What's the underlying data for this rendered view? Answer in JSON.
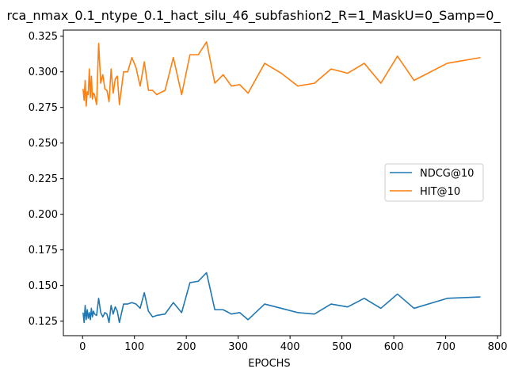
{
  "chart_data": {
    "type": "line",
    "title": "rca_nmax_0.1_ntype_0.1_hact_silu_46_subfashion2_R=1_MaskU=0_Samp=0_",
    "xlabel": "EPOCHS",
    "ylabel": "",
    "xlim": [
      -37,
      806
    ],
    "ylim": [
      0.1148,
      0.3293
    ],
    "x_ticks": [
      0,
      100,
      200,
      300,
      400,
      500,
      600,
      700,
      800
    ],
    "y_ticks": [
      0.125,
      0.15,
      0.175,
      0.2,
      0.225,
      0.25,
      0.275,
      0.3,
      0.325
    ],
    "y_tick_labels": [
      "0.125",
      "0.150",
      "0.175",
      "0.200",
      "0.225",
      "0.250",
      "0.275",
      "0.300",
      "0.325"
    ],
    "grid": false,
    "legend_position": "center-right",
    "series": [
      {
        "name": "NDCG@10",
        "color": "#1f77b4",
        "x": [
          1,
          3,
          5,
          7,
          9,
          11,
          13,
          15,
          17,
          19,
          21,
          23,
          27,
          31,
          35,
          39,
          43,
          47,
          51,
          55,
          59,
          63,
          67,
          71,
          79,
          87,
          95,
          103,
          111,
          119,
          127,
          135,
          143,
          159,
          175,
          191,
          207,
          223,
          239,
          255,
          271,
          287,
          303,
          319,
          351,
          383,
          415,
          447,
          479,
          511,
          543,
          575,
          607,
          639,
          703,
          767
        ],
        "y": [
          0.131,
          0.124,
          0.136,
          0.126,
          0.133,
          0.127,
          0.131,
          0.126,
          0.134,
          0.128,
          0.132,
          0.13,
          0.129,
          0.141,
          0.131,
          0.128,
          0.131,
          0.13,
          0.124,
          0.136,
          0.13,
          0.135,
          0.132,
          0.124,
          0.137,
          0.137,
          0.138,
          0.137,
          0.134,
          0.145,
          0.132,
          0.128,
          0.129,
          0.13,
          0.138,
          0.131,
          0.152,
          0.153,
          0.159,
          0.133,
          0.133,
          0.13,
          0.131,
          0.126,
          0.137,
          0.134,
          0.131,
          0.13,
          0.137,
          0.135,
          0.141,
          0.134,
          0.144,
          0.134,
          0.141,
          0.142
        ]
      },
      {
        "name": "HIT@10",
        "color": "#ff7f0e",
        "x": [
          1,
          3,
          5,
          7,
          9,
          11,
          13,
          15,
          17,
          19,
          21,
          23,
          27,
          31,
          35,
          39,
          43,
          47,
          51,
          55,
          59,
          63,
          67,
          71,
          79,
          87,
          95,
          103,
          111,
          119,
          127,
          135,
          143,
          159,
          175,
          191,
          207,
          223,
          239,
          255,
          271,
          287,
          303,
          319,
          351,
          383,
          415,
          447,
          479,
          511,
          543,
          575,
          607,
          639,
          703,
          767
        ],
        "y": [
          0.288,
          0.28,
          0.294,
          0.276,
          0.286,
          0.284,
          0.302,
          0.282,
          0.297,
          0.281,
          0.285,
          0.284,
          0.277,
          0.32,
          0.292,
          0.298,
          0.288,
          0.287,
          0.279,
          0.302,
          0.285,
          0.295,
          0.297,
          0.277,
          0.3,
          0.3,
          0.31,
          0.303,
          0.29,
          0.307,
          0.287,
          0.287,
          0.284,
          0.287,
          0.31,
          0.284,
          0.312,
          0.312,
          0.321,
          0.292,
          0.298,
          0.29,
          0.291,
          0.285,
          0.306,
          0.299,
          0.29,
          0.292,
          0.302,
          0.299,
          0.306,
          0.292,
          0.311,
          0.294,
          0.306,
          0.31
        ]
      }
    ]
  }
}
